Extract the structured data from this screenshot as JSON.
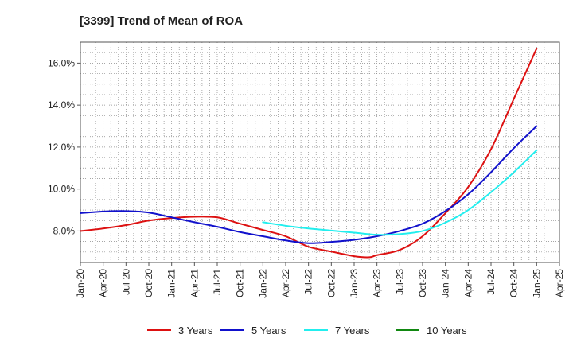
{
  "chart_data": {
    "type": "line",
    "title": "[3399]  Trend of Mean of ROA",
    "xlabel": "",
    "ylabel": "",
    "x_ticks": [
      "Jan-20",
      "Apr-20",
      "Jul-20",
      "Oct-20",
      "Jan-21",
      "Apr-21",
      "Jul-21",
      "Oct-21",
      "Jan-22",
      "Apr-22",
      "Jul-22",
      "Oct-22",
      "Jan-23",
      "Apr-23",
      "Jul-23",
      "Oct-23",
      "Jan-24",
      "Apr-24",
      "Jul-24",
      "Oct-24",
      "Jan-25",
      "Apr-25"
    ],
    "y_ticks": [
      8.0,
      10.0,
      12.0,
      14.0,
      16.0
    ],
    "y_tick_labels": [
      "8.0%",
      "10.0%",
      "12.0%",
      "14.0%",
      "16.0%"
    ],
    "ylim": [
      6.5,
      17.0
    ],
    "xlim": [
      "Jan-20",
      "Apr-25"
    ],
    "grid": true,
    "legend_position": "bottom",
    "series": [
      {
        "name": "3 Years",
        "color": "#dd1111",
        "points": [
          [
            "Jan-20",
            8.0
          ],
          [
            "Apr-20",
            8.12
          ],
          [
            "Jul-20",
            8.28
          ],
          [
            "Oct-20",
            8.5
          ],
          [
            "Jan-21",
            8.62
          ],
          [
            "Apr-21",
            8.68
          ],
          [
            "Jul-21",
            8.65
          ],
          [
            "Oct-21",
            8.35
          ],
          [
            "Jan-22",
            8.05
          ],
          [
            "Apr-22",
            7.75
          ],
          [
            "Jul-22",
            7.25
          ],
          [
            "Oct-22",
            7.02
          ],
          [
            "Jan-23",
            6.8
          ],
          [
            "Mar-23",
            6.75
          ],
          [
            "Apr-23",
            6.85
          ],
          [
            "Jul-23",
            7.1
          ],
          [
            "Oct-23",
            7.75
          ],
          [
            "Jan-24",
            8.85
          ],
          [
            "Apr-24",
            10.1
          ],
          [
            "Jul-24",
            11.9
          ],
          [
            "Oct-24",
            14.3
          ],
          [
            "Jan-25",
            16.7
          ]
        ]
      },
      {
        "name": "5 Years",
        "color": "#1111cc",
        "points": [
          [
            "Jan-20",
            8.85
          ],
          [
            "Apr-20",
            8.93
          ],
          [
            "Jul-20",
            8.95
          ],
          [
            "Oct-20",
            8.88
          ],
          [
            "Jan-21",
            8.65
          ],
          [
            "Apr-21",
            8.42
          ],
          [
            "Jul-21",
            8.2
          ],
          [
            "Oct-21",
            7.95
          ],
          [
            "Jan-22",
            7.75
          ],
          [
            "Apr-22",
            7.55
          ],
          [
            "Jul-22",
            7.42
          ],
          [
            "Oct-22",
            7.48
          ],
          [
            "Jan-23",
            7.58
          ],
          [
            "Apr-23",
            7.75
          ],
          [
            "Jul-23",
            8.0
          ],
          [
            "Oct-23",
            8.35
          ],
          [
            "Jan-24",
            8.95
          ],
          [
            "Apr-24",
            9.75
          ],
          [
            "Jul-24",
            10.8
          ],
          [
            "Oct-24",
            11.95
          ],
          [
            "Jan-25",
            13.0
          ]
        ]
      },
      {
        "name": "7 Years",
        "color": "#22eeee",
        "points": [
          [
            "Jan-22",
            8.42
          ],
          [
            "Apr-22",
            8.25
          ],
          [
            "Jul-22",
            8.12
          ],
          [
            "Oct-22",
            8.02
          ],
          [
            "Jan-23",
            7.92
          ],
          [
            "Apr-23",
            7.82
          ],
          [
            "Jul-23",
            7.85
          ],
          [
            "Oct-23",
            8.0
          ],
          [
            "Jan-24",
            8.4
          ],
          [
            "Apr-24",
            9.0
          ],
          [
            "Jul-24",
            9.85
          ],
          [
            "Oct-24",
            10.8
          ],
          [
            "Jan-25",
            11.85
          ]
        ]
      },
      {
        "name": "10 Years",
        "color": "#118811",
        "points": []
      }
    ]
  }
}
